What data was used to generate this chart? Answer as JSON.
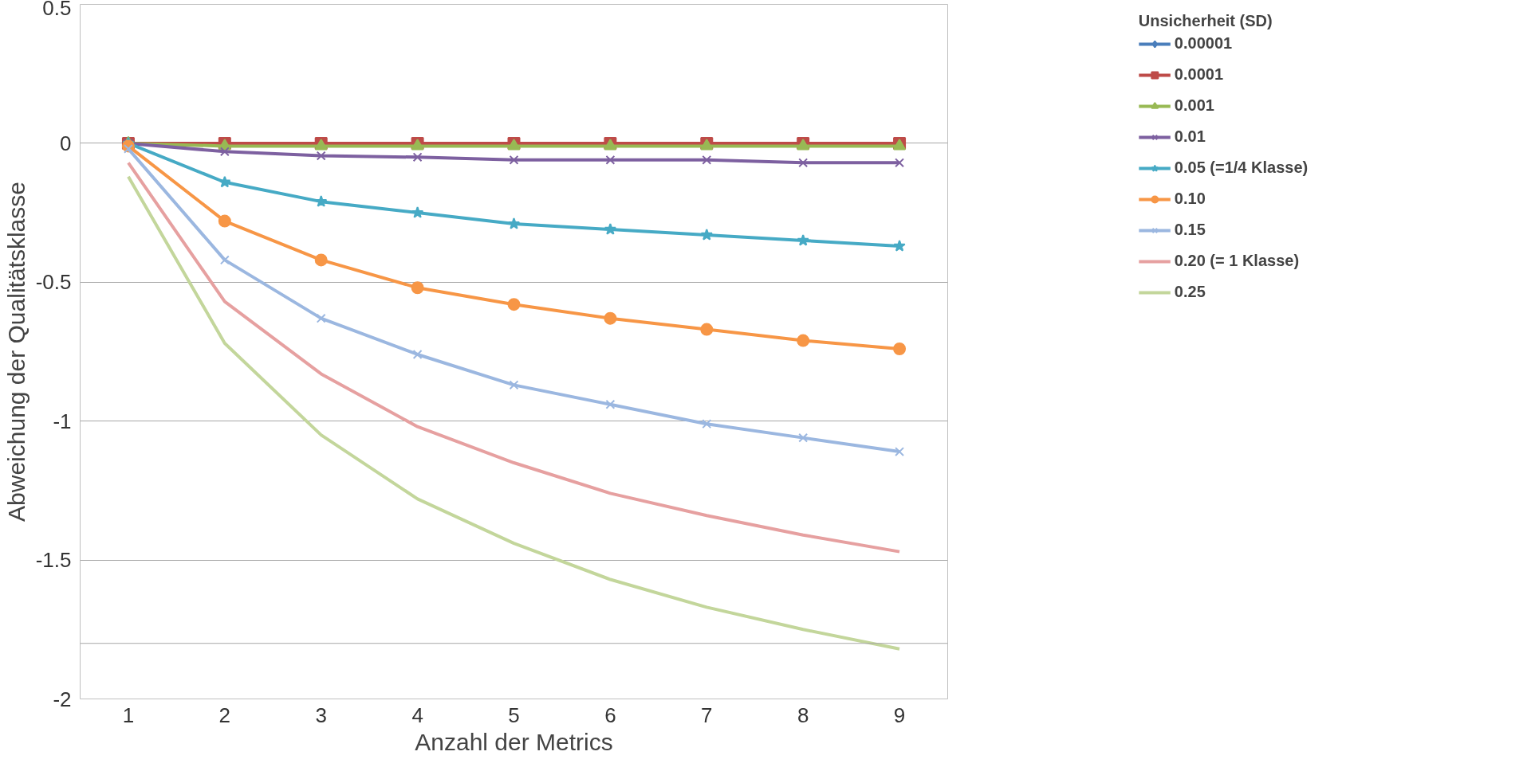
{
  "chart_data": {
    "type": "line",
    "xlabel": "Anzahl der Metrics",
    "ylabel": "Abweichung der Qualitätsklasse",
    "legend_title": "Unsicherheit (SD)",
    "x": [
      1,
      2,
      3,
      4,
      5,
      6,
      7,
      8,
      9
    ],
    "xlim": [
      0.5,
      9.5
    ],
    "xticks": [
      1,
      2,
      3,
      4,
      5,
      6,
      7,
      8,
      9
    ],
    "ylim": [
      -2,
      0.5
    ],
    "yticks": [
      0.5,
      0,
      -0.5,
      -1,
      -1.5,
      -2
    ],
    "grid": "y",
    "legend": "right",
    "ref_lines": [
      {
        "axis": "y",
        "value": -1.8,
        "color": "#a6a6a6"
      }
    ],
    "series": [
      {
        "name": "0.00001",
        "color": "#4a7ebb",
        "marker": "diamond",
        "values": [
          null,
          null,
          null,
          null,
          null,
          null,
          null,
          null,
          null
        ]
      },
      {
        "name": "0.0001",
        "color": "#be4b48",
        "marker": "square",
        "values": [
          0,
          0,
          0,
          0,
          0,
          0,
          0,
          0,
          0
        ]
      },
      {
        "name": "0.001",
        "color": "#98b954",
        "marker": "triangle",
        "values": [
          0,
          -0.01,
          -0.01,
          -0.01,
          -0.01,
          -0.01,
          -0.01,
          -0.01,
          -0.01
        ]
      },
      {
        "name": "0.01",
        "color": "#7d60a0",
        "marker": "cross",
        "values": [
          0,
          -0.03,
          -0.045,
          -0.05,
          -0.06,
          -0.06,
          -0.06,
          -0.07,
          -0.07
        ]
      },
      {
        "name": "0.05 (=1/4 Klasse)",
        "color": "#46aac5",
        "marker": "star",
        "values": [
          0,
          -0.14,
          -0.21,
          -0.25,
          -0.29,
          -0.31,
          -0.33,
          -0.35,
          -0.37
        ]
      },
      {
        "name": "0.10",
        "color": "#f79646",
        "marker": "circle",
        "values": [
          -0.01,
          -0.28,
          -0.42,
          -0.52,
          -0.58,
          -0.63,
          -0.67,
          -0.71,
          -0.74
        ]
      },
      {
        "name": "0.15",
        "color": "#9bb7e0",
        "marker": "cross",
        "values": [
          -0.02,
          -0.42,
          -0.63,
          -0.76,
          -0.87,
          -0.94,
          -1.01,
          -1.06,
          -1.11
        ]
      },
      {
        "name": "0.20 (= 1 Klasse)",
        "color": "#e6a0a0",
        "marker": "none",
        "values": [
          -0.07,
          -0.57,
          -0.83,
          -1.02,
          -1.15,
          -1.26,
          -1.34,
          -1.41,
          -1.47
        ]
      },
      {
        "name": "0.25",
        "color": "#c3d69b",
        "marker": "none",
        "values": [
          -0.12,
          -0.72,
          -1.05,
          -1.28,
          -1.44,
          -1.57,
          -1.67,
          -1.75,
          -1.82
        ]
      }
    ]
  }
}
